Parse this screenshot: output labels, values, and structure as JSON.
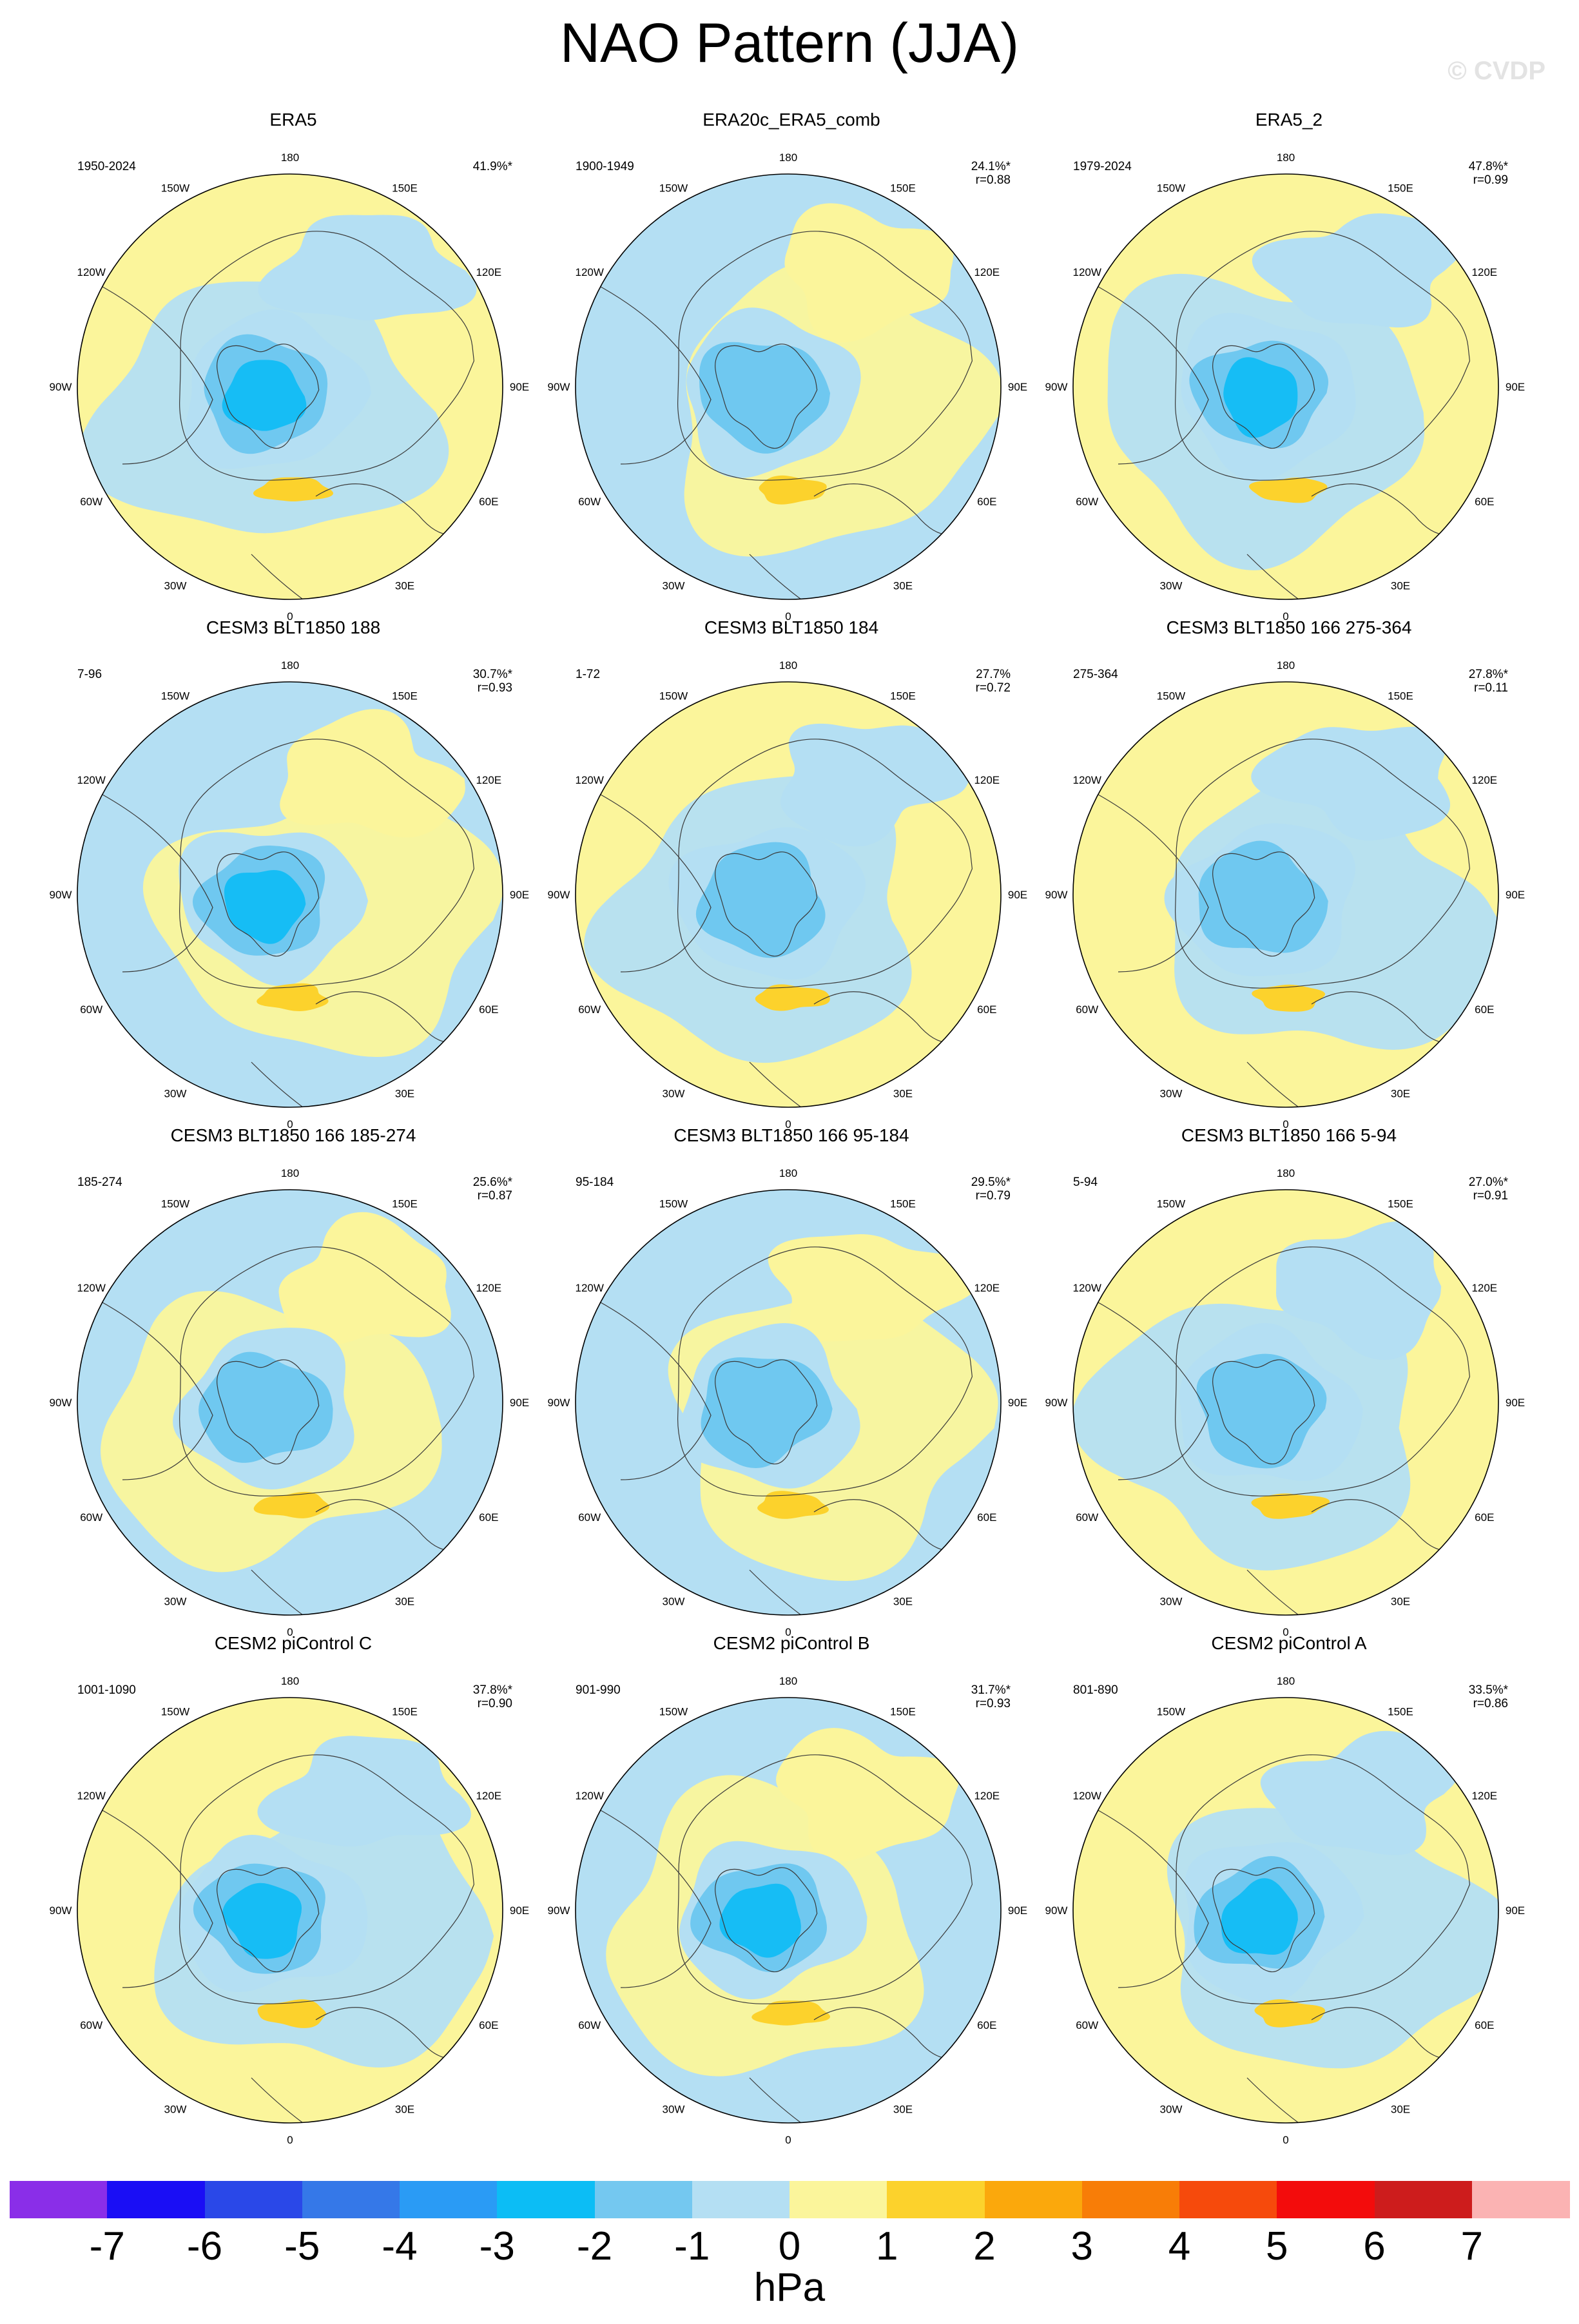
{
  "title": "NAO Pattern (JJA)",
  "watermark": "© CVDP",
  "units": "hPa",
  "colors": {
    "land_line": "#3a3a3a",
    "neg1": "#b4dff3",
    "neg2": "#6fc8f0",
    "neg3": "#16bdf5",
    "neg4": "#2aa1f5",
    "pos1": "#fbf59b",
    "pos2": "#fcd22c"
  },
  "lon_labels": [
    "180",
    "150E",
    "120E",
    "90E",
    "60E",
    "30E",
    "0",
    "30W",
    "60W",
    "90W",
    "120W",
    "150W"
  ],
  "panels": [
    {
      "title": "ERA5",
      "period": "1950-2024",
      "pct": "41.9%*",
      "r": ""
    },
    {
      "title": "ERA20c_ERA5_comb",
      "period": "1900-1949",
      "pct": "24.1%*",
      "r": "r=0.88"
    },
    {
      "title": "ERA5_2",
      "period": "1979-2024",
      "pct": "47.8%*",
      "r": "r=0.99"
    },
    {
      "title": "CESM3 BLT1850 188",
      "period": "7-96",
      "pct": "30.7%*",
      "r": "r=0.93"
    },
    {
      "title": "CESM3 BLT1850 184",
      "period": "1-72",
      "pct": "27.7%",
      "r": "r=0.72"
    },
    {
      "title": "CESM3 BLT1850 166 275-364",
      "period": "275-364",
      "pct": "27.8%*",
      "r": "r=0.11"
    },
    {
      "title": "CESM3 BLT1850 166 185-274",
      "period": "185-274",
      "pct": "25.6%*",
      "r": "r=0.87"
    },
    {
      "title": "CESM3 BLT1850 166 95-184",
      "period": "95-184",
      "pct": "29.5%*",
      "r": "r=0.79"
    },
    {
      "title": "CESM3 BLT1850 166 5-94",
      "period": "5-94",
      "pct": "27.0%*",
      "r": "r=0.91"
    },
    {
      "title": "CESM2 piControl C",
      "period": "1001-1090",
      "pct": "37.8%*",
      "r": "r=0.90"
    },
    {
      "title": "CESM2 piControl B",
      "period": "901-990",
      "pct": "31.7%*",
      "r": "r=0.93"
    },
    {
      "title": "CESM2 piControl A",
      "period": "801-890",
      "pct": "33.5%*",
      "r": "r=0.86"
    }
  ],
  "colorbar": {
    "colors": [
      "#8a2ee8",
      "#1a0ef5",
      "#2a48e8",
      "#3578e8",
      "#2a9bf5",
      "#0cbdf5",
      "#74c8f0",
      "#b4dff3",
      "#fbf59b",
      "#fcd22c",
      "#fba80c",
      "#f87d07",
      "#f64a0c",
      "#f30c0c",
      "#cd1c1c",
      "#fbb3b3"
    ],
    "labels": [
      "-7",
      "-6",
      "-5",
      "-4",
      "-3",
      "-2",
      "-1",
      "0",
      "1",
      "2",
      "3",
      "4",
      "5",
      "6",
      "7"
    ]
  }
}
